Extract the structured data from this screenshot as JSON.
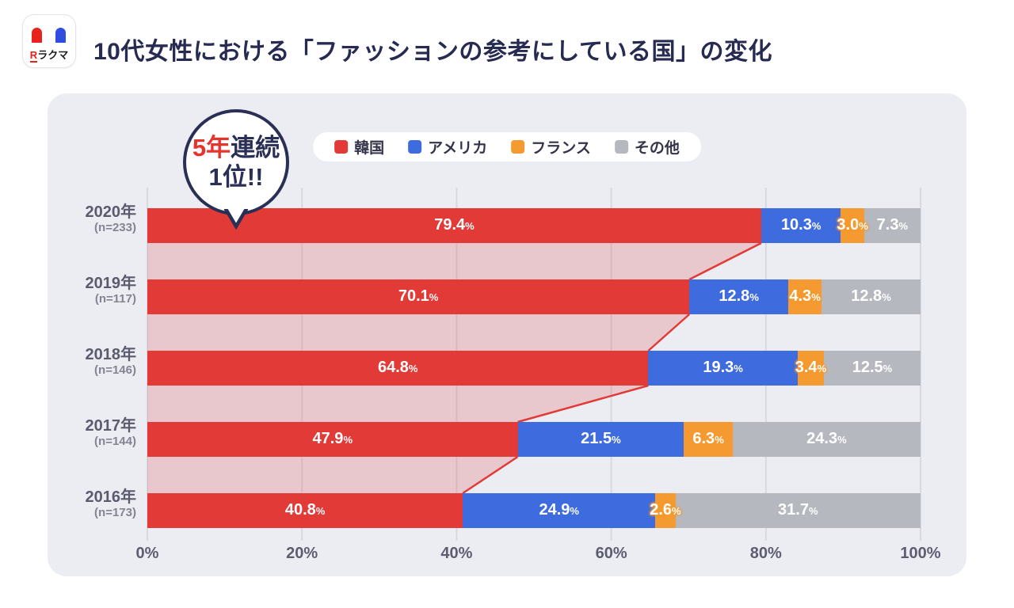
{
  "header": {
    "title": "10代女性における「ファッションの参考にしている国」の変化",
    "logo": {
      "r": "R",
      "rest": "ラクマ",
      "red": "#e8231d",
      "blue": "#2f4de0"
    }
  },
  "callout": {
    "line1_red": "5年",
    "line1_dark": "連続",
    "line2": "1位!!"
  },
  "colors": {
    "panel_bg": "#ecedf2",
    "grid": "#d8d9df",
    "title": "#272b52",
    "connector_line": "#e13a37",
    "connector_fill": "rgba(226,55,60,0.2)"
  },
  "chart_data": {
    "type": "bar",
    "stacked": true,
    "orientation": "horizontal",
    "title": "10代女性における「ファッションの参考にしている国」の変化",
    "series": [
      "韓国",
      "アメリカ",
      "フランス",
      "その他"
    ],
    "series_colors": [
      "#e13a37",
      "#3e6bde",
      "#f59a30",
      "#b6b8c0"
    ],
    "categories": [
      "2020年",
      "2019年",
      "2018年",
      "2017年",
      "2016年"
    ],
    "rows": [
      {
        "year": "2020年",
        "n_label": "(n=233)",
        "values": [
          79.4,
          10.3,
          3.0,
          7.3
        ]
      },
      {
        "year": "2019年",
        "n_label": "(n=117)",
        "values": [
          70.1,
          12.8,
          4.3,
          12.8
        ]
      },
      {
        "year": "2018年",
        "n_label": "(n=146)",
        "values": [
          64.8,
          19.3,
          3.4,
          12.5
        ]
      },
      {
        "year": "2017年",
        "n_label": "(n=144)",
        "values": [
          47.9,
          21.5,
          6.3,
          24.3
        ]
      },
      {
        "year": "2016年",
        "n_label": "(n=173)",
        "values": [
          40.8,
          24.9,
          2.6,
          31.7
        ]
      }
    ],
    "x_ticks": [
      "0%",
      "20%",
      "40%",
      "60%",
      "80%",
      "100%"
    ],
    "xlim": [
      0,
      100
    ],
    "percent_suffix": "%",
    "legend_position": "top-center",
    "grid": true,
    "annotation": "5年連続1位!!"
  }
}
